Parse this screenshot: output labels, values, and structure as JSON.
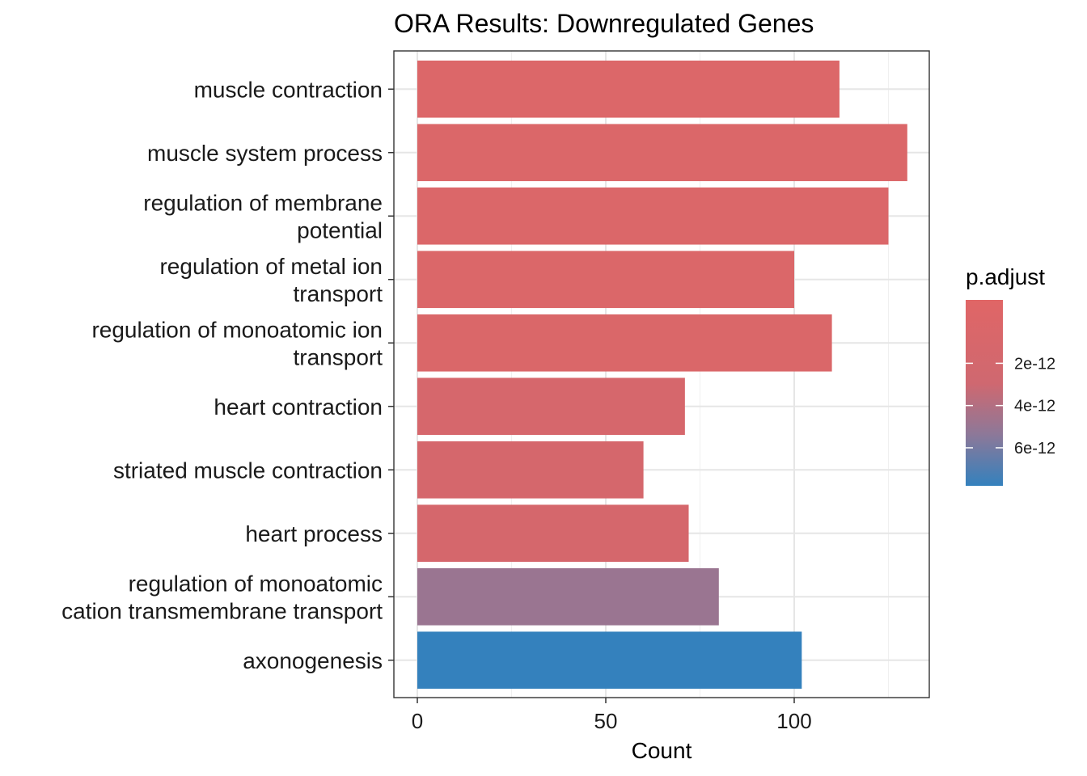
{
  "chart_data": {
    "type": "bar",
    "orientation": "horizontal",
    "title": "ORA Results: Downregulated Genes",
    "xlabel": "Count",
    "ylabel": "",
    "xlim": [
      0,
      136
    ],
    "x_ticks": [
      0,
      50,
      100
    ],
    "grid": true,
    "categories": [
      [
        "muscle contraction"
      ],
      [
        "muscle system process"
      ],
      [
        "regulation of membrane",
        "potential"
      ],
      [
        "regulation of metal ion",
        "transport"
      ],
      [
        "regulation of monoatomic ion",
        "transport"
      ],
      [
        "heart contraction"
      ],
      [
        "striated muscle contraction"
      ],
      [
        "heart process"
      ],
      [
        "regulation of monoatomic",
        "cation transmembrane transport"
      ],
      [
        "axonogenesis"
      ]
    ],
    "values": [
      112,
      130,
      125,
      100,
      110,
      71,
      60,
      72,
      80,
      102
    ],
    "p_adjust": [
      1e-14,
      5e-14,
      1e-13,
      2e-13,
      3e-13,
      1.4e-12,
      1.5e-12,
      1.5e-12,
      4.9e-12,
      7.8e-12
    ],
    "legend": {
      "title": "p.adjust",
      "placement": "right",
      "ticks": [
        {
          "value": 2e-12,
          "label": "2e-12"
        },
        {
          "value": 4e-12,
          "label": "4e-12"
        },
        {
          "value": 6e-12,
          "label": "6e-12"
        }
      ],
      "range": [
        -1e-12,
        7.8e-12
      ],
      "color_low": "#e06666",
      "color_high": "#3481bd"
    }
  }
}
